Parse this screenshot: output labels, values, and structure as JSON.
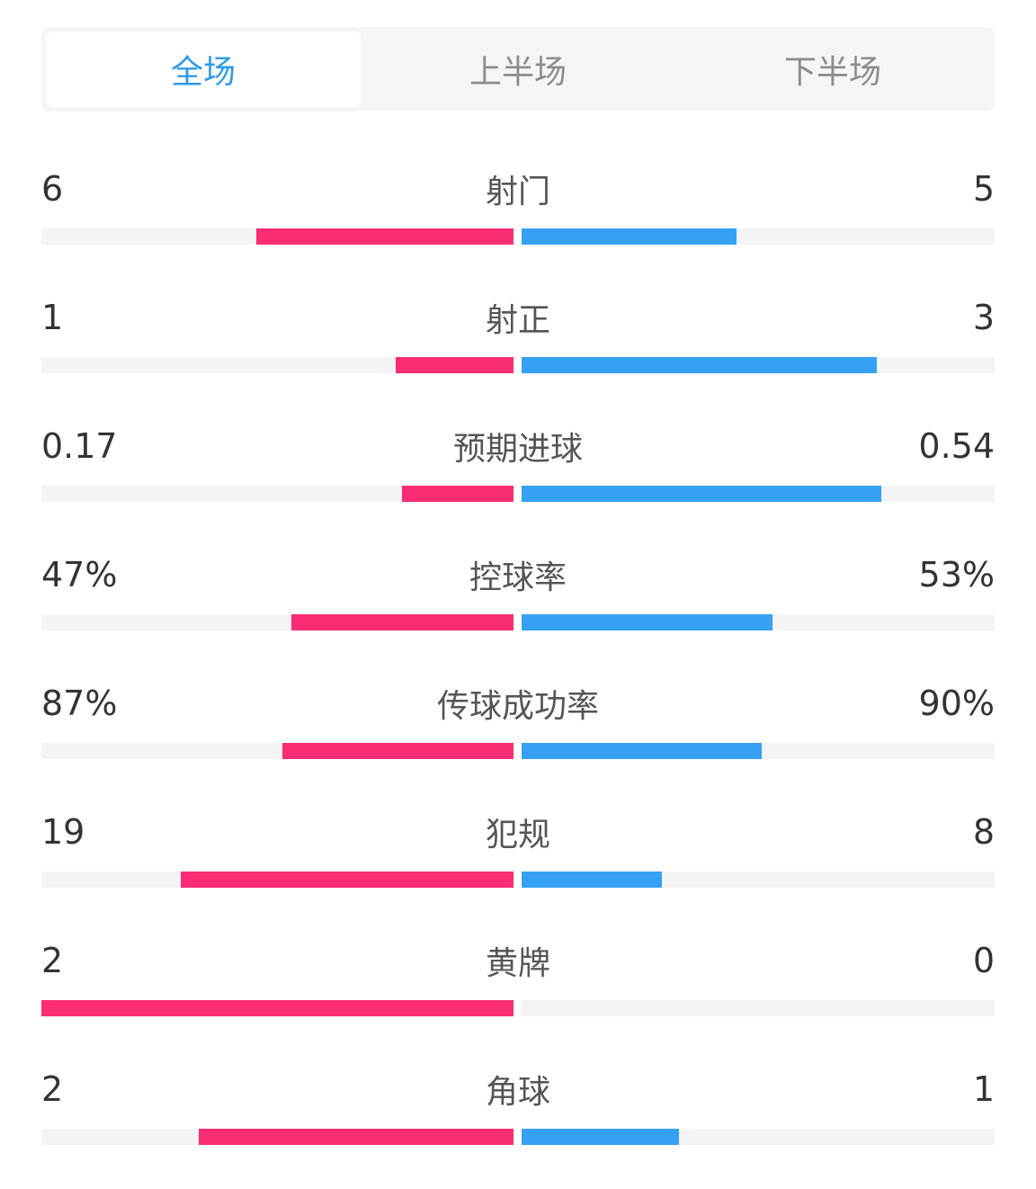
{
  "tabs": [
    {
      "label": "全场",
      "active": true
    },
    {
      "label": "上半场",
      "active": false
    },
    {
      "label": "下半场",
      "active": false
    }
  ],
  "colors": {
    "home": "#fa2c74",
    "away": "#34a1f4",
    "track": "#f4f4f4",
    "active_tab": "#2e9be6"
  },
  "stats": [
    {
      "label": "射门",
      "home": "6",
      "away": "5",
      "home_fill": 0.545,
      "away_fill": 0.455
    },
    {
      "label": "射正",
      "home": "1",
      "away": "3",
      "home_fill": 0.25,
      "away_fill": 0.75
    },
    {
      "label": "预期进球",
      "home": "0.17",
      "away": "0.54",
      "home_fill": 0.237,
      "away_fill": 0.76
    },
    {
      "label": "控球率",
      "home": "47%",
      "away": "53%",
      "home_fill": 0.47,
      "away_fill": 0.53
    },
    {
      "label": "传球成功率",
      "home": "87%",
      "away": "90%",
      "home_fill": 0.49,
      "away_fill": 0.508
    },
    {
      "label": "犯规",
      "home": "19",
      "away": "8",
      "home_fill": 0.704,
      "away_fill": 0.296
    },
    {
      "label": "黄牌",
      "home": "2",
      "away": "0",
      "home_fill": 1.0,
      "away_fill": 0.0
    },
    {
      "label": "角球",
      "home": "2",
      "away": "1",
      "home_fill": 0.667,
      "away_fill": 0.333
    }
  ]
}
